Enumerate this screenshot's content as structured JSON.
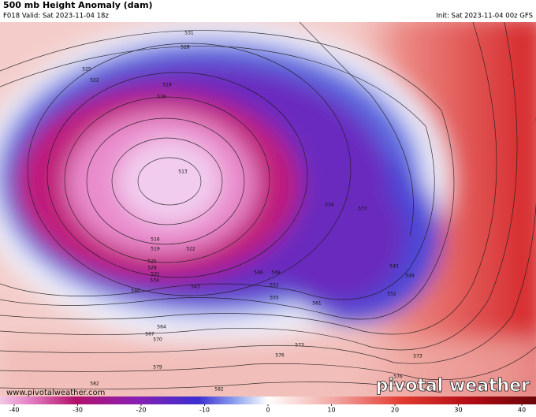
{
  "header": {
    "title": "500 mb Height Anomaly (dam)",
    "valid": "F018 Valid: Sat 2023-11-04 18z",
    "init": "Init: Sat 2023-11-04 00z GFS"
  },
  "map": {
    "contour_labels": [
      531,
      528,
      525,
      522,
      519,
      516,
      513,
      516,
      519,
      522,
      525,
      528,
      531,
      534,
      540,
      543,
      546,
      549,
      552,
      555,
      534,
      537,
      543,
      549,
      552,
      561,
      564,
      567,
      570,
      573,
      576,
      579,
      582,
      582,
      573,
      576
    ],
    "watermark": "www.pivotalweather.com",
    "logo": "pivotal weather"
  },
  "colorbar": {
    "ticks": [
      -40,
      -30,
      -20,
      -10,
      0,
      10,
      20,
      30,
      40
    ]
  }
}
